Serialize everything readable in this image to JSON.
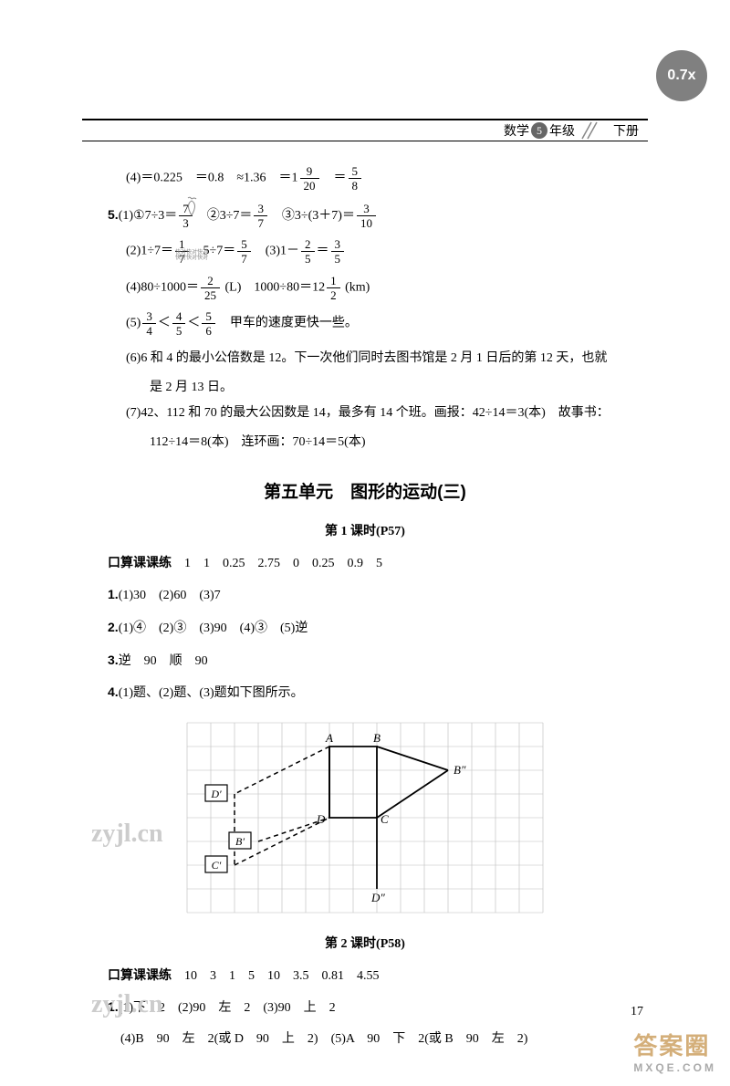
{
  "zoom": "0.7x",
  "header": {
    "subject": "数学",
    "grade_num": "5",
    "grade_label": "年级",
    "volume": "下册"
  },
  "colors": {
    "zoom_bg": "#808080",
    "text": "#000000",
    "watermark": "#cccccc",
    "corner_wm": "#d4af7a"
  },
  "q4": "(4)＝0.225　＝0.8　≈1.36　＝1",
  "q4_frac1_n": "9",
  "q4_frac1_d": "20",
  "q4_eq": "　＝",
  "q4_frac2_n": "5",
  "q4_frac2_d": "8",
  "q5_label": "5.",
  "q5_1a": "(1)①7÷3＝",
  "q5_1a_fn": "7",
  "q5_1a_fd": "3",
  "q5_1b": "　②3÷7＝",
  "q5_1b_fn": "3",
  "q5_1b_fd": "7",
  "q5_1c": "　③3÷(3＋7)＝",
  "q5_1c_fn": "3",
  "q5_1c_fd": "10",
  "q5_2a": "(2)1÷7＝",
  "q5_2a_fn": "1",
  "q5_2a_fd": "7",
  "q5_2b": "　5÷7＝",
  "q5_2b_fn": "5",
  "q5_2b_fd": "7",
  "q5_2c": "　(3)1－",
  "q5_2c_fn": "2",
  "q5_2c_fd": "5",
  "q5_2c_eq": "＝",
  "q5_2c_fn2": "3",
  "q5_2c_fd2": "5",
  "q5_tiny1": "快对快对快对",
  "q5_tiny2": "快对快对快对",
  "q5_4a": "(4)80÷1000＝",
  "q5_4a_fn": "2",
  "q5_4a_fd": "25",
  "q5_4a_unit": " (L)　1000÷80＝12",
  "q5_4b_fn": "1",
  "q5_4b_fd": "2",
  "q5_4b_unit": " (km)",
  "q5_5": "(5)",
  "q5_5_f1n": "3",
  "q5_5_f1d": "4",
  "q5_5_lt1": "＜",
  "q5_5_f2n": "4",
  "q5_5_f2d": "5",
  "q5_5_lt2": "＜",
  "q5_5_f3n": "5",
  "q5_5_f3d": "6",
  "q5_5_text": "　甲车的速度更快一些。",
  "q5_6": "(6)6 和 4 的最小公倍数是 12。下一次他们同时去图书馆是 2 月 1 日后的第 12 天，也就",
  "q5_6b": "是 2 月 13 日。",
  "q5_7": "(7)42、112 和 70 的最大公因数是 14，最多有 14 个班。画报：42÷14＝3(本)　故事书：",
  "q5_7b": "112÷14＝8(本)　连环画：70÷14＝5(本)",
  "unit_title": "第五单元　图形的运动(三)",
  "lesson1_title": "第 1 课时(P57)",
  "l1_oral_label": "口算课课练",
  "l1_oral": "　1　1　0.25　2.75　0　0.25　0.9　5",
  "l1_q1_label": "1.",
  "l1_q1": "(1)30　(2)60　(3)7",
  "l1_q2_label": "2.",
  "l1_q2_1": "(1)",
  "l1_q2_1a": "④",
  "l1_q2_2": "　(2)",
  "l1_q2_2a": "③",
  "l1_q2_3": "　(3)90　(4)",
  "l1_q2_4a": "③",
  "l1_q2_5": "　(5)逆",
  "l1_q3_label": "3.",
  "l1_q3": "逆　90　顺　90",
  "l1_q4_label": "4.",
  "l1_q4": "(1)题、(2)题、(3)题如下图所示。",
  "lesson2_title": "第 2 课时(P58)",
  "l2_oral_label": "口算课课练",
  "l2_oral": "　10　3　1　5　10　3.5　0.81　4.55",
  "l2_q1_label": "1.",
  "l2_q1a": "(1)下　2　(2)90　左　2　(3)90　上　2",
  "l2_q1b": "(4)B　90　左　2(或 D　90　上　2)　(5)A　90　下　2(或 B　90　左　2)",
  "page_num": "17",
  "wm_text": "zyjl.cn",
  "corner_top": "答案圈",
  "corner_bottom": "MXQE.COM",
  "figure": {
    "grid_cols": 15,
    "grid_rows": 8,
    "cell": 26,
    "grid_color": "#bbbbbb",
    "labels": {
      "A": "A",
      "B": "B",
      "C": "C",
      "D": "D",
      "Bpp": "B″",
      "Dpp": "D″",
      "Dprime": "D′",
      "Bprime": "B′",
      "Cprime": "C′"
    }
  }
}
